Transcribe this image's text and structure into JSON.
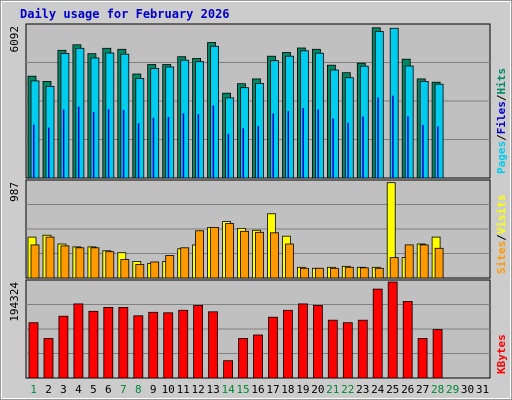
{
  "chart_data": {
    "type": "bar",
    "title": "Daily usage for February 2026",
    "categories": [
      "1",
      "2",
      "3",
      "4",
      "5",
      "6",
      "7",
      "8",
      "9",
      "10",
      "11",
      "12",
      "13",
      "14",
      "15",
      "16",
      "17",
      "18",
      "19",
      "20",
      "21",
      "22",
      "23",
      "24",
      "25",
      "26",
      "27",
      "28",
      "29",
      "30",
      "31"
    ],
    "weekend_days": [
      "1",
      "7",
      "8",
      "14",
      "15",
      "21",
      "22",
      "28",
      "29"
    ],
    "colors": {
      "hits": "#008866",
      "files": "#0000cc",
      "pages": "#00ccee",
      "visits": "#ffff00",
      "sites": "#ff9900",
      "kbytes": "#ff0000",
      "weekday_label": "#000000",
      "weekend_label": "#008833"
    },
    "panels": [
      {
        "id": "top",
        "ymax": 6092,
        "ymax_label": "6092",
        "side_label": [
          "Pages",
          "Files",
          "Hits"
        ],
        "series": [
          {
            "name": "Hits",
            "color": "#008866",
            "values": [
              4080,
              3870,
              5120,
              5340,
              4980,
              5200,
              5160,
              4170,
              4550,
              4550,
              4860,
              4790,
              5430,
              3400,
              3780,
              3970,
              4880,
              5030,
              5210,
              5160,
              4520,
              4220,
              4600,
              6020,
              null,
              4760,
              3970,
              3840,
              null,
              null,
              null
            ]
          },
          {
            "name": "Pages",
            "color": "#00ccee",
            "values": [
              3890,
              3670,
              4990,
              5200,
              4810,
              5010,
              4960,
              3990,
              4390,
              4450,
              4720,
              4660,
              5280,
              3210,
              3620,
              3790,
              4700,
              4880,
              5100,
              5000,
              4330,
              4020,
              4480,
              5870,
              6000,
              4490,
              3870,
              3760,
              null,
              null,
              null
            ]
          }
        ]
      },
      {
        "id": "middle",
        "ymax": 987,
        "ymax_label": "987",
        "side_label": [
          "Sites",
          "Visits"
        ],
        "series": [
          {
            "name": "Visits",
            "color": "#ffff00",
            "values": [
              420,
              440,
              350,
              320,
              320,
              280,
              260,
              170,
              150,
              170,
              300,
              340,
              520,
              580,
              510,
              490,
              660,
              430,
              110,
              100,
              110,
              120,
              110,
              110,
              980,
              210,
              350,
              420,
              null,
              null,
              null
            ]
          },
          {
            "name": "Sites",
            "color": "#ff9900",
            "values": [
              340,
              420,
              330,
              310,
              310,
              270,
              190,
              140,
              165,
              230,
              310,
              485,
              520,
              560,
              480,
              470,
              465,
              350,
              100,
              100,
              100,
              110,
              105,
              100,
              210,
              340,
              340,
              305,
              null,
              null,
              null
            ]
          }
        ]
      },
      {
        "id": "bottom",
        "ymax": 194324,
        "ymax_label": "194324",
        "side_label": [
          "KBytes"
        ],
        "series": [
          {
            "name": "KBytes",
            "color": "#ff0000",
            "values": [
              112000,
              80000,
              125000,
              150000,
              135000,
              143000,
              143000,
              126000,
              133000,
              132000,
              137000,
              147000,
              134000,
              35000,
              80000,
              87000,
              123000,
              137000,
              150000,
              147000,
              117000,
              112000,
              117000,
              180000,
              196000,
              155000,
              80000,
              98000,
              null,
              null,
              null
            ]
          }
        ]
      }
    ],
    "grid": true,
    "legend": "right"
  }
}
